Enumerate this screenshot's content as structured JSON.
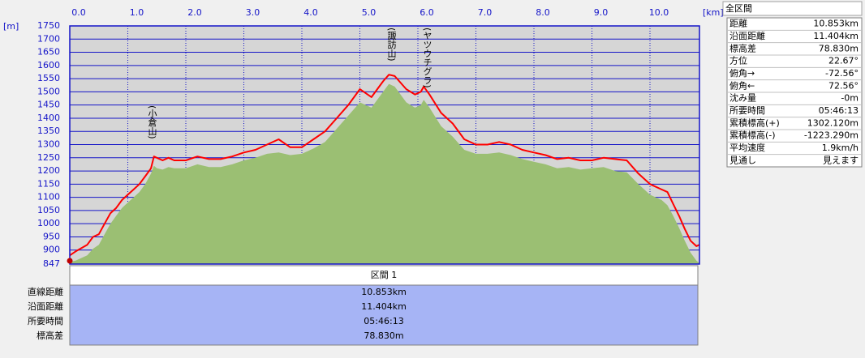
{
  "chart_data": {
    "type": "profile",
    "x_label": "[km]",
    "y_label": "[m]",
    "xlim": [
      0,
      10.853
    ],
    "ylim": [
      847,
      1750
    ],
    "xticks": [
      {
        "value": 0,
        "label": "0.0"
      },
      {
        "value": 1,
        "label": "1.0"
      },
      {
        "value": 2,
        "label": "2.0"
      },
      {
        "value": 3,
        "label": "3.0"
      },
      {
        "value": 4,
        "label": "4.0"
      },
      {
        "value": 5,
        "label": "5.0"
      },
      {
        "value": 6,
        "label": "6.0"
      },
      {
        "value": 7,
        "label": "7.0"
      },
      {
        "value": 8,
        "label": "8.0"
      },
      {
        "value": 9,
        "label": "9.0"
      },
      {
        "value": 10,
        "label": "10.0"
      }
    ],
    "yticks": [
      847,
      900,
      950,
      1000,
      1050,
      1100,
      1150,
      1200,
      1250,
      1300,
      1350,
      1400,
      1450,
      1500,
      1550,
      1600,
      1650,
      1700,
      1750
    ],
    "grid": true,
    "x": [
      0,
      0.1,
      0.3,
      0.4,
      0.5,
      0.6,
      0.7,
      0.8,
      0.9,
      1.0,
      1.1,
      1.2,
      1.3,
      1.4,
      1.45,
      1.5,
      1.6,
      1.7,
      1.8,
      2.0,
      2.2,
      2.4,
      2.6,
      2.8,
      3.0,
      3.2,
      3.4,
      3.6,
      3.8,
      4.0,
      4.2,
      4.4,
      4.6,
      4.8,
      5.0,
      5.2,
      5.4,
      5.5,
      5.6,
      5.8,
      5.95,
      6.05,
      6.1,
      6.2,
      6.4,
      6.6,
      6.8,
      7.0,
      7.2,
      7.4,
      7.6,
      7.8,
      8.0,
      8.2,
      8.4,
      8.6,
      8.8,
      9.0,
      9.2,
      9.4,
      9.6,
      9.8,
      10.0,
      10.2,
      10.3,
      10.4,
      10.5,
      10.6,
      10.7,
      10.8,
      10.853
    ],
    "series": [
      {
        "color": "#9bbf73",
        "fill": true,
        "values": [
          855,
          860,
          880,
          905,
          920,
          960,
          1000,
          1030,
          1060,
          1080,
          1100,
          1120,
          1150,
          1190,
          1220,
          1210,
          1205,
          1215,
          1210,
          1210,
          1225,
          1215,
          1215,
          1225,
          1240,
          1250,
          1265,
          1270,
          1260,
          1265,
          1285,
          1310,
          1360,
          1410,
          1460,
          1440,
          1500,
          1530,
          1520,
          1460,
          1440,
          1450,
          1470,
          1440,
          1370,
          1330,
          1280,
          1265,
          1265,
          1270,
          1260,
          1245,
          1235,
          1225,
          1210,
          1215,
          1205,
          1210,
          1215,
          1200,
          1195,
          1150,
          1110,
          1090,
          1070,
          1030,
          985,
          935,
          890,
          860,
          850
        ]
      },
      {
        "color": "#ff0000",
        "fill": false,
        "values": [
          880,
          895,
          920,
          950,
          960,
          1000,
          1040,
          1060,
          1090,
          1110,
          1130,
          1150,
          1180,
          1210,
          1255,
          1250,
          1240,
          1250,
          1240,
          1240,
          1255,
          1245,
          1245,
          1255,
          1270,
          1280,
          1300,
          1320,
          1290,
          1290,
          1320,
          1350,
          1400,
          1450,
          1510,
          1480,
          1540,
          1565,
          1560,
          1510,
          1490,
          1500,
          1520,
          1490,
          1420,
          1380,
          1320,
          1300,
          1300,
          1310,
          1300,
          1280,
          1270,
          1260,
          1245,
          1250,
          1240,
          1240,
          1250,
          1245,
          1240,
          1190,
          1150,
          1130,
          1120,
          1075,
          1030,
          980,
          935,
          915,
          920
        ]
      }
    ],
    "annotations": [
      "(小倉山)",
      "(諏訪山)",
      "(ヤツウチグラ)"
    ]
  },
  "summary_panel": {
    "title": "全区間",
    "rows": [
      [
        "距離",
        "10.853km"
      ],
      [
        "沿面距離",
        "11.404km"
      ],
      [
        "標高差",
        "78.830m"
      ],
      [
        "方位",
        "22.67°"
      ],
      [
        "俯角→",
        "-72.56°"
      ],
      [
        "俯角←",
        "72.56°"
      ],
      [
        "沈み量",
        "-0m"
      ],
      [
        "所要時間",
        "05:46:13"
      ],
      [
        "累積標高(+)",
        "1302.120m"
      ],
      [
        "累積標高(-)",
        "-1223.290m"
      ],
      [
        "平均速度",
        "1.9km/h"
      ],
      [
        "見通し",
        "見えます"
      ]
    ]
  },
  "section_table": {
    "header": "区間 1",
    "rows": [
      [
        "直線距離",
        "10.853km"
      ],
      [
        "沿面距離",
        "11.404km"
      ],
      [
        "所要時間",
        "05:46:13"
      ],
      [
        "標高差",
        "78.830m"
      ]
    ]
  }
}
